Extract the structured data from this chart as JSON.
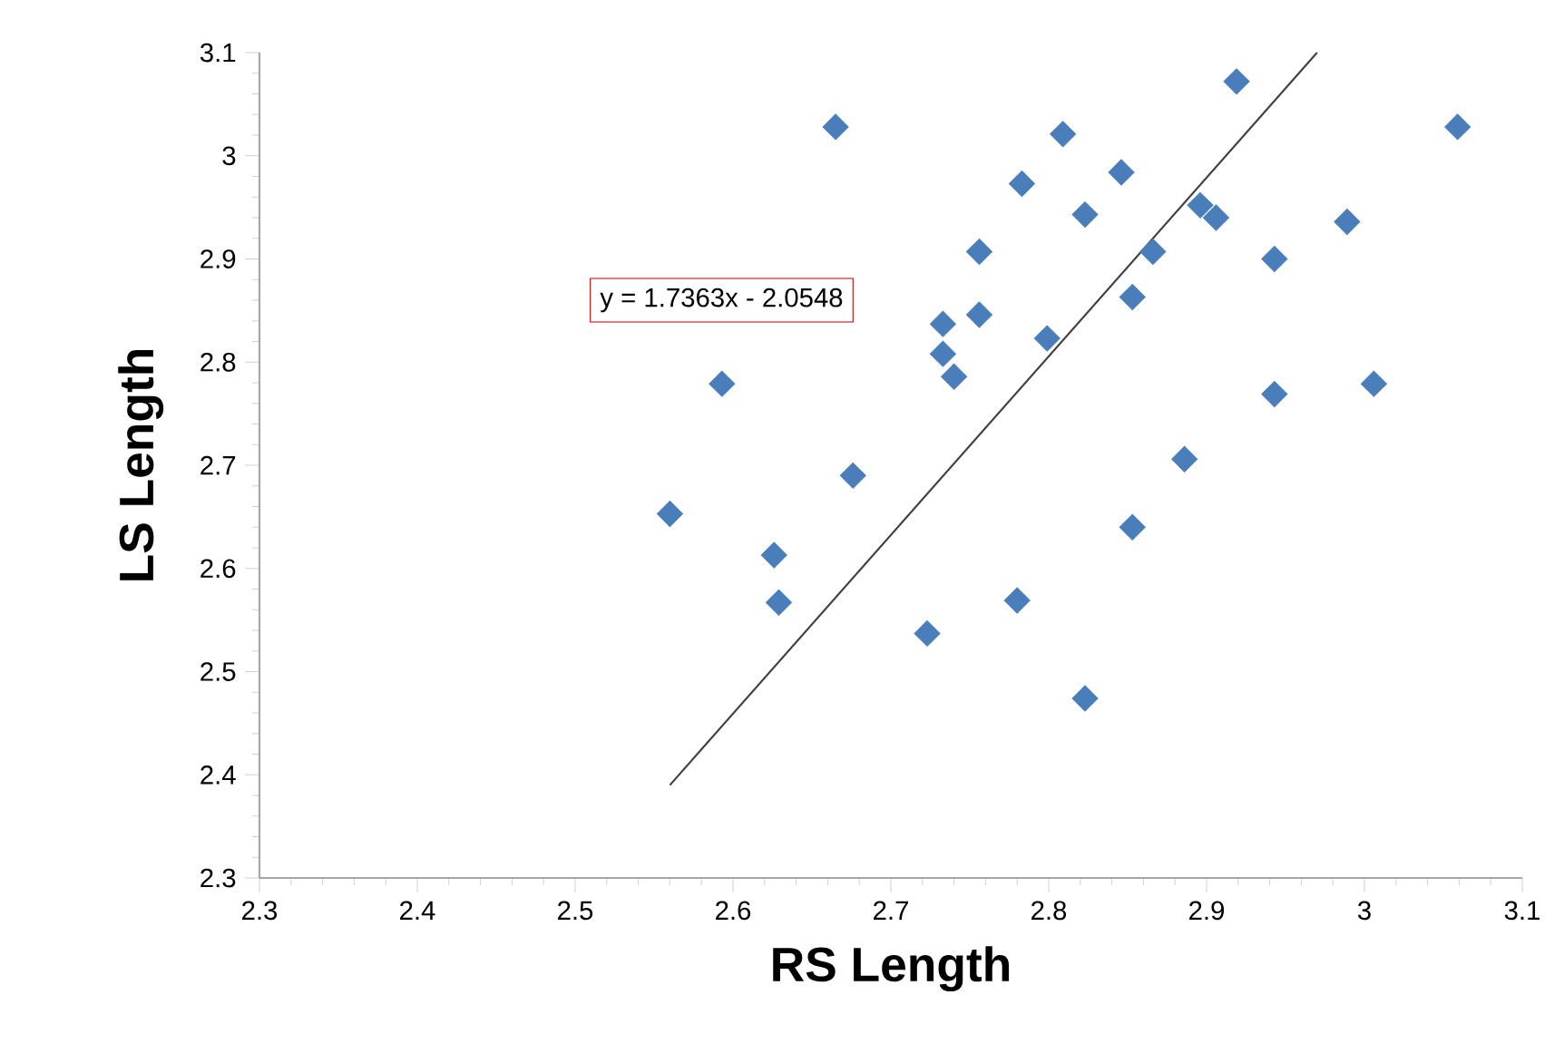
{
  "chart_data": {
    "type": "scatter",
    "xlabel": "RS Length",
    "ylabel": "LS Length",
    "xlim": [
      2.3,
      3.1
    ],
    "ylim": [
      2.3,
      3.1
    ],
    "xticks": [
      2.3,
      2.4,
      2.5,
      2.6,
      2.7,
      2.8,
      2.9,
      3,
      3.1
    ],
    "yticks": [
      2.3,
      2.4,
      2.5,
      2.6,
      2.7,
      2.8,
      2.9,
      3,
      3.1
    ],
    "marker": "diamond",
    "grid": false,
    "annotations": [
      "y = 1.7363x - 2.0548"
    ],
    "series": [
      {
        "color": "#4a7ebb",
        "x": [
          2.665,
          2.593,
          2.676,
          2.56,
          2.626,
          2.629,
          2.919,
          3.059,
          2.809,
          2.783,
          2.846,
          2.823,
          2.896,
          2.906,
          2.989,
          2.756,
          2.866,
          2.943,
          2.853,
          2.756,
          2.733,
          2.733,
          2.74,
          2.799,
          3.006,
          2.943,
          2.886,
          2.853,
          2.78,
          2.723,
          2.823
        ],
        "values": [
          3.028,
          2.779,
          2.69,
          2.653,
          2.613,
          2.567,
          3.072,
          3.028,
          3.021,
          2.973,
          2.984,
          2.943,
          2.952,
          2.94,
          2.936,
          2.907,
          2.907,
          2.9,
          2.863,
          2.846,
          2.837,
          2.808,
          2.786,
          2.823,
          2.779,
          2.769,
          2.706,
          2.64,
          2.569,
          2.537,
          2.474
        ]
      },
      {
        "type": "line",
        "color": "#404040",
        "marker": "none",
        "x": [
          2.56,
          2.97
        ],
        "values": [
          2.39,
          3.1
        ]
      }
    ]
  }
}
